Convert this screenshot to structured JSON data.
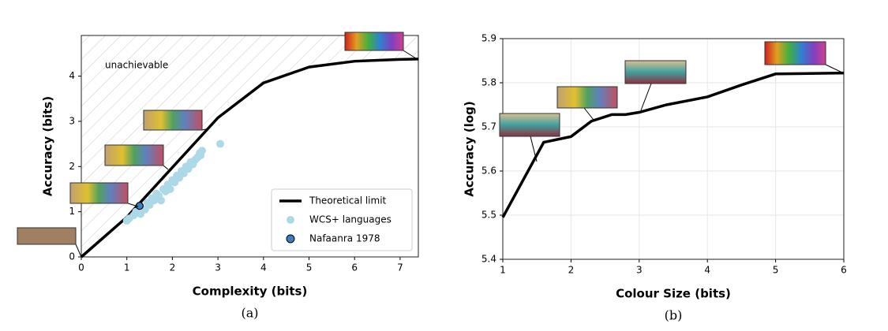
{
  "chart_data": [
    {
      "type": "scatter",
      "caption": "(a)",
      "xlabel": "Complexity (bits)",
      "ylabel": "Accuracy (bits)",
      "annotation": "unachievable",
      "xlim": [
        0,
        7.4
      ],
      "ylim": [
        0,
        4.9
      ],
      "xticks": [
        0,
        1,
        2,
        3,
        4,
        5,
        6,
        7
      ],
      "yticks": [
        0,
        1,
        2,
        3,
        4
      ],
      "grid": false,
      "legend": "lower right",
      "series": [
        {
          "name": "Theoretical limit",
          "type": "line",
          "color": "#000000",
          "x": [
            0,
            1,
            2,
            3,
            4,
            5,
            6,
            7,
            7.4
          ],
          "values": [
            0,
            0.88,
            1.98,
            3.08,
            3.85,
            4.2,
            4.33,
            4.37,
            4.38
          ]
        },
        {
          "name": "WCS+ languages",
          "type": "scatter",
          "color": "#add8e6",
          "x": [
            1,
            1.05,
            1.15,
            1.2,
            1.3,
            1.4,
            1.45,
            1.5,
            1.55,
            1.6,
            1.65,
            1.7,
            1.75,
            1.8,
            1.85,
            1.9,
            1.95,
            2.0,
            2.05,
            2.1,
            2.15,
            2.2,
            2.25,
            2.3,
            2.35,
            2.4,
            2.45,
            2.5,
            2.55,
            2.6,
            2.62,
            2.65,
            3.05
          ],
          "values": [
            0.8,
            0.85,
            0.92,
            1.0,
            0.95,
            1.05,
            1.2,
            1.15,
            1.3,
            1.25,
            1.4,
            1.35,
            1.25,
            1.5,
            1.45,
            1.6,
            1.5,
            1.7,
            1.65,
            1.8,
            1.75,
            1.9,
            1.85,
            2.0,
            1.95,
            2.1,
            2.05,
            2.15,
            2.2,
            2.3,
            2.25,
            2.35,
            2.5
          ]
        },
        {
          "name": "Nafaanra 1978",
          "type": "scatter",
          "color": "#3a80c0",
          "edgecolor": "#000000",
          "x": [
            1.28
          ],
          "values": [
            1.13
          ]
        }
      ]
    },
    {
      "type": "line",
      "caption": "(b)",
      "xlabel": "Colour Size (bits)",
      "ylabel": "Accuracy (log)",
      "xlim": [
        1,
        6
      ],
      "ylim": [
        5.4,
        5.9
      ],
      "xticks": [
        1,
        2,
        3,
        4,
        5,
        6
      ],
      "yticks": [
        5.4,
        5.5,
        5.6,
        5.7,
        5.8,
        5.9
      ],
      "grid": true,
      "color": "#000000",
      "x": [
        1,
        1.6,
        2,
        2.3,
        2.6,
        2.8,
        3,
        3.4,
        4,
        4.5,
        5,
        6
      ],
      "values": [
        5.495,
        5.665,
        5.678,
        5.713,
        5.728,
        5.728,
        5.733,
        5.75,
        5.768,
        5.795,
        5.82,
        5.822
      ]
    }
  ]
}
